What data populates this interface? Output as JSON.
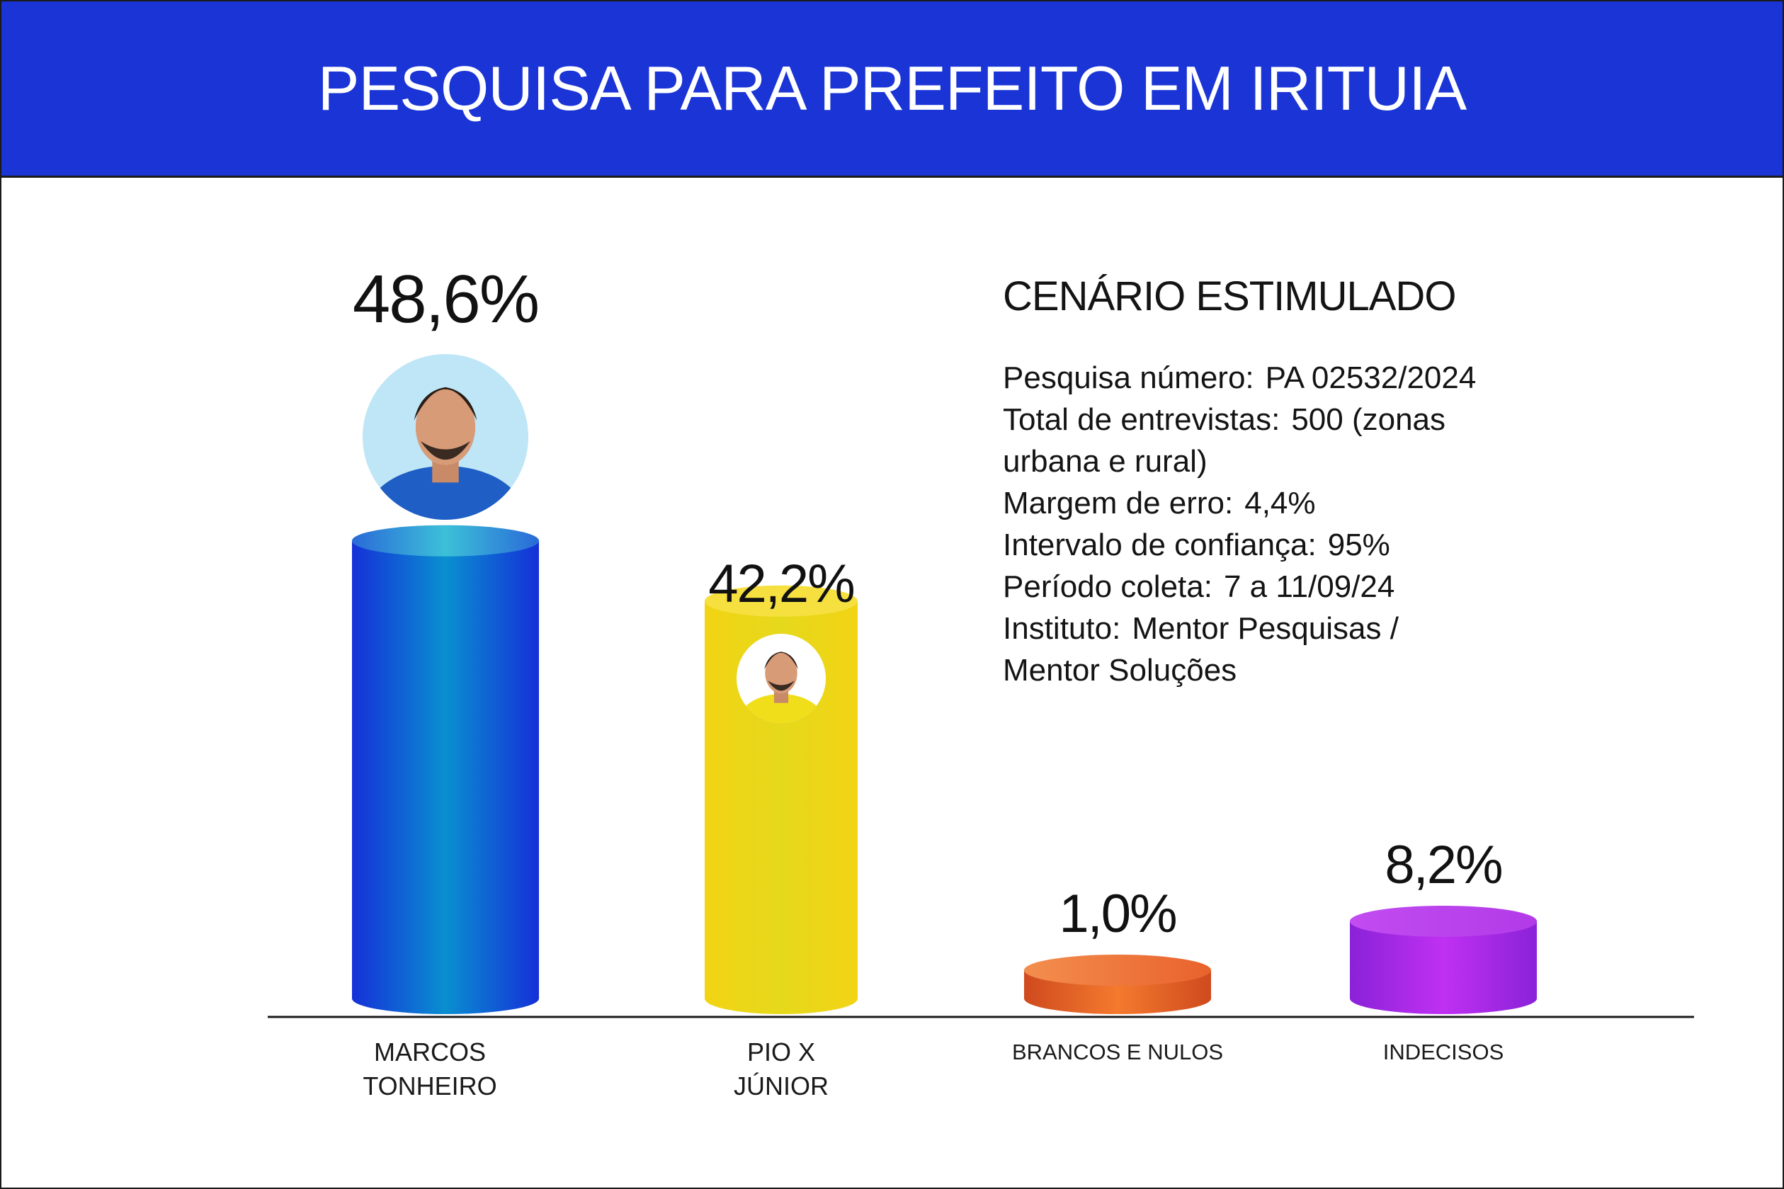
{
  "title": "PESQUISA PARA PREFEITO EM IRITUIA",
  "info": {
    "subtitle": "CENÁRIO ESTIMULADO",
    "rows": [
      {
        "label": "Pesquisa número:",
        "value": "PA 02532/2024"
      },
      {
        "label": "Total de entrevistas:",
        "value": "500 (zonas"
      },
      {
        "label": "",
        "value": "urbana e rural)"
      },
      {
        "label": "Margem de erro:",
        "value": "4,4%"
      },
      {
        "label": "Intervalo de confiança:",
        "value": "95%"
      },
      {
        "label": "Período coleta:",
        "value": "7 a 11/09/24"
      },
      {
        "label": "Instituto:",
        "value": "Mentor Pesquisas /"
      },
      {
        "label": "",
        "value": "Mentor Soluções"
      }
    ]
  },
  "chart_data": {
    "type": "bar",
    "title": "PESQUISA PARA PREFEITO EM IRITUIA",
    "categories": [
      "MARCOS TONHEIRO",
      "PIO X JÚNIOR",
      "BRANCOS E NULOS",
      "INDECISOS"
    ],
    "category_lines": [
      [
        "MARCOS",
        "TONHEIRO"
      ],
      [
        "PIO X",
        "JÚNIOR"
      ],
      [
        "BRANCOS E NULOS"
      ],
      [
        "INDECISOS"
      ]
    ],
    "values": [
      48.6,
      42.2,
      1.0,
      8.2
    ],
    "value_labels": [
      "48,6%",
      "42,2%",
      "1,0%",
      "8,2%"
    ],
    "colors": [
      "#1a3be0",
      "#f0d617",
      "#f0682a",
      "#a12ee8"
    ],
    "photos": [
      "candidate-photo-marcos",
      "candidate-photo-pio"
    ],
    "xlabel": "",
    "ylabel": "",
    "grid": false
  }
}
